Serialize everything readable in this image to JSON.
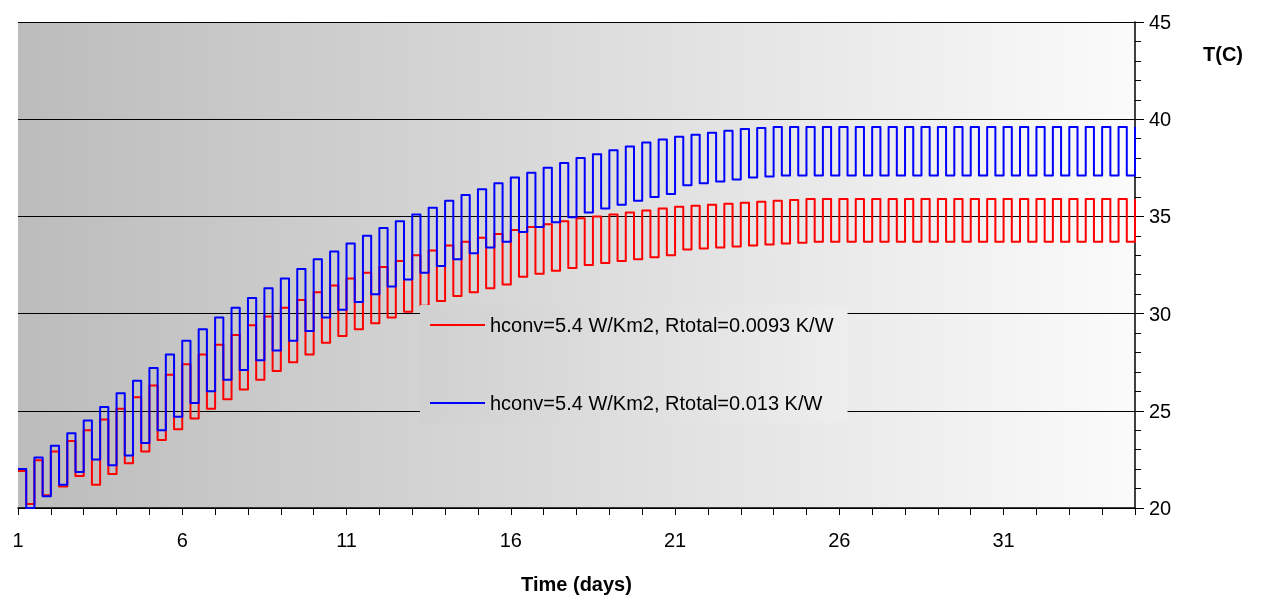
{
  "chart_data": {
    "type": "step",
    "xlabel": "Time (days)",
    "ylabel": "T(C)",
    "x": [
      1,
      1.25,
      1.5,
      1.75,
      2,
      2.25,
      2.5,
      2.75,
      3,
      3.25,
      3.5,
      3.75,
      4,
      4.25,
      4.5,
      4.75,
      5,
      5.25,
      5.5,
      5.75,
      6,
      6.25,
      6.5,
      6.75,
      7,
      7.25,
      7.5,
      7.75,
      8,
      8.25,
      8.5,
      8.75,
      9,
      9.25,
      9.5,
      9.75,
      10,
      10.25,
      10.5,
      10.75,
      11,
      11.25,
      11.5,
      11.75,
      12,
      12.25,
      12.5,
      12.75,
      13,
      13.25,
      13.5,
      13.75,
      14,
      14.25,
      14.5,
      14.75,
      15,
      15.25,
      15.5,
      15.75,
      16,
      16.25,
      16.5,
      16.75,
      17,
      17.25,
      17.5,
      17.75,
      18,
      18.25,
      18.5,
      18.75,
      19,
      19.25,
      19.5,
      19.75,
      20,
      20.25,
      20.5,
      20.75,
      21,
      21.25,
      21.5,
      21.75,
      22,
      22.25,
      22.5,
      22.75,
      23,
      23.25,
      23.5,
      23.75,
      24,
      24.25,
      24.5,
      24.75,
      25,
      25.25,
      25.5,
      25.75,
      26,
      26.25,
      26.5,
      26.75,
      27,
      27.25,
      27.5,
      27.75,
      28,
      28.25,
      28.5,
      28.75,
      29,
      29.25,
      29.5,
      29.75,
      30,
      30.25,
      30.5,
      30.75,
      31,
      31.25,
      31.5,
      31.75,
      32,
      32.25,
      32.5,
      32.75,
      33,
      33.25,
      33.5,
      33.75,
      34,
      34.25,
      34.5,
      34.75,
      35
    ],
    "series": [
      {
        "name": "hconv=5.4 W/Km2, Rtotal=0.0093 K/W",
        "color": "#ff0000",
        "values": [
          21.9,
          20.2,
          22.45,
          20.65,
          22.9,
          21.1,
          23.45,
          21.65,
          24.0,
          21.2,
          24.55,
          21.75,
          25.1,
          22.3,
          25.7,
          22.9,
          26.3,
          23.5,
          26.85,
          24.05,
          27.4,
          24.6,
          27.9,
          25.1,
          28.4,
          25.6,
          28.9,
          26.1,
          29.4,
          26.6,
          29.85,
          27.05,
          30.3,
          27.5,
          30.7,
          27.9,
          31.1,
          28.5,
          31.45,
          28.85,
          31.8,
          29.2,
          32.1,
          29.5,
          32.4,
          29.8,
          32.7,
          30.1,
          33.0,
          30.4,
          33.25,
          30.65,
          33.5,
          30.9,
          33.7,
          31.1,
          33.9,
          31.3,
          34.1,
          31.5,
          34.3,
          31.9,
          34.45,
          32.05,
          34.6,
          32.2,
          34.75,
          32.35,
          34.9,
          32.5,
          35.0,
          32.6,
          35.1,
          32.7,
          35.2,
          32.8,
          35.3,
          32.9,
          35.4,
          33.0,
          35.5,
          33.3,
          35.55,
          33.35,
          35.6,
          33.4,
          35.65,
          33.45,
          35.7,
          33.5,
          35.75,
          33.55,
          35.8,
          33.6,
          35.85,
          33.65,
          35.9,
          33.7,
          35.9,
          33.7,
          35.9,
          33.7,
          35.9,
          33.7,
          35.9,
          33.7,
          35.9,
          33.7,
          35.9,
          33.7,
          35.9,
          33.7,
          35.9,
          33.7,
          35.9,
          33.7,
          35.9,
          33.7,
          35.9,
          33.7,
          35.9,
          33.7,
          35.9,
          33.7,
          35.9,
          33.7,
          35.9,
          33.7,
          35.9,
          33.7,
          35.9,
          33.7,
          35.9,
          33.7,
          35.9,
          33.7,
          35.9
        ]
      },
      {
        "name": "hconv=5.4 W/Km2, Rtotal=0.013 K/W",
        "color": "#0000ff",
        "values": [
          22.0,
          20.0,
          22.6,
          20.6,
          23.2,
          21.2,
          23.85,
          21.85,
          24.5,
          22.5,
          25.2,
          22.2,
          25.9,
          22.7,
          26.55,
          23.35,
          27.2,
          24.0,
          27.9,
          24.7,
          28.6,
          25.4,
          29.2,
          26.0,
          29.8,
          26.6,
          30.3,
          27.1,
          30.8,
          27.6,
          31.3,
          28.1,
          31.8,
          28.6,
          32.3,
          29.1,
          32.8,
          29.8,
          33.2,
          30.2,
          33.6,
          30.6,
          34.0,
          31.0,
          34.4,
          31.4,
          34.75,
          31.75,
          35.1,
          32.1,
          35.45,
          32.45,
          35.8,
          32.8,
          36.1,
          33.1,
          36.4,
          33.4,
          36.7,
          33.7,
          37.0,
          34.2,
          37.25,
          34.45,
          37.5,
          34.7,
          37.75,
          34.95,
          38.0,
          35.2,
          38.2,
          35.4,
          38.4,
          35.6,
          38.6,
          35.8,
          38.8,
          36.0,
          38.95,
          36.15,
          39.1,
          36.6,
          39.2,
          36.7,
          39.3,
          36.8,
          39.4,
          36.9,
          39.5,
          37.0,
          39.55,
          37.05,
          39.6,
          37.1,
          39.6,
          37.1,
          39.6,
          37.1,
          39.6,
          37.1,
          39.6,
          37.1,
          39.6,
          37.1,
          39.6,
          37.1,
          39.6,
          37.1,
          39.6,
          37.1,
          39.6,
          37.1,
          39.6,
          37.1,
          39.6,
          37.1,
          39.6,
          37.1,
          39.6,
          37.1,
          39.6,
          37.1,
          39.6,
          37.1,
          39.6,
          37.1,
          39.6,
          37.1,
          39.6,
          37.1,
          39.6,
          37.1,
          39.6,
          37.1,
          39.6,
          37.1,
          39.6
        ]
      }
    ],
    "xlim": [
      1,
      35
    ],
    "xticks": [
      1,
      {
        "value": 2,
        "label": null
      },
      {
        "value": 3,
        "label": null
      },
      {
        "value": 4,
        "label": null
      },
      {
        "value": 5,
        "label": null
      },
      6,
      {
        "value": 7,
        "label": null
      },
      {
        "value": 8,
        "label": null
      },
      {
        "value": 9,
        "label": null
      },
      {
        "value": 10,
        "label": null
      },
      11,
      {
        "value": 12,
        "label": null
      },
      {
        "value": 13,
        "label": null
      },
      {
        "value": 14,
        "label": null
      },
      {
        "value": 15,
        "label": null
      },
      16,
      {
        "value": 17,
        "label": null
      },
      {
        "value": 18,
        "label": null
      },
      {
        "value": 19,
        "label": null
      },
      {
        "value": 20,
        "label": null
      },
      21,
      {
        "value": 22,
        "label": null
      },
      {
        "value": 23,
        "label": null
      },
      {
        "value": 24,
        "label": null
      },
      {
        "value": 25,
        "label": null
      },
      26,
      {
        "value": 27,
        "label": null
      },
      {
        "value": 28,
        "label": null
      },
      {
        "value": 29,
        "label": null
      },
      {
        "value": 30,
        "label": null
      },
      31,
      {
        "value": 32,
        "label": null
      },
      {
        "value": 33,
        "label": null
      },
      {
        "value": 34,
        "label": null
      },
      {
        "value": 35,
        "label": null
      }
    ],
    "ylim": [
      20,
      45
    ],
    "yticks": [
      20,
      {
        "value": 21,
        "label": null
      },
      {
        "value": 22,
        "label": null
      },
      {
        "value": 23,
        "label": null
      },
      {
        "value": 24,
        "label": null
      },
      25,
      {
        "value": 26,
        "label": null
      },
      {
        "value": 27,
        "label": null
      },
      {
        "value": 28,
        "label": null
      },
      {
        "value": 29,
        "label": null
      },
      30,
      {
        "value": 31,
        "label": null
      },
      {
        "value": 32,
        "label": null
      },
      {
        "value": 33,
        "label": null
      },
      {
        "value": 34,
        "label": null
      },
      35,
      {
        "value": 36,
        "label": null
      },
      {
        "value": 37,
        "label": null
      },
      {
        "value": 38,
        "label": null
      },
      {
        "value": 39,
        "label": null
      },
      40,
      {
        "value": 41,
        "label": null
      },
      {
        "value": 42,
        "label": null
      },
      {
        "value": 43,
        "label": null
      },
      {
        "value": 44,
        "label": null
      },
      45
    ],
    "grid": "y",
    "legend": "center"
  }
}
